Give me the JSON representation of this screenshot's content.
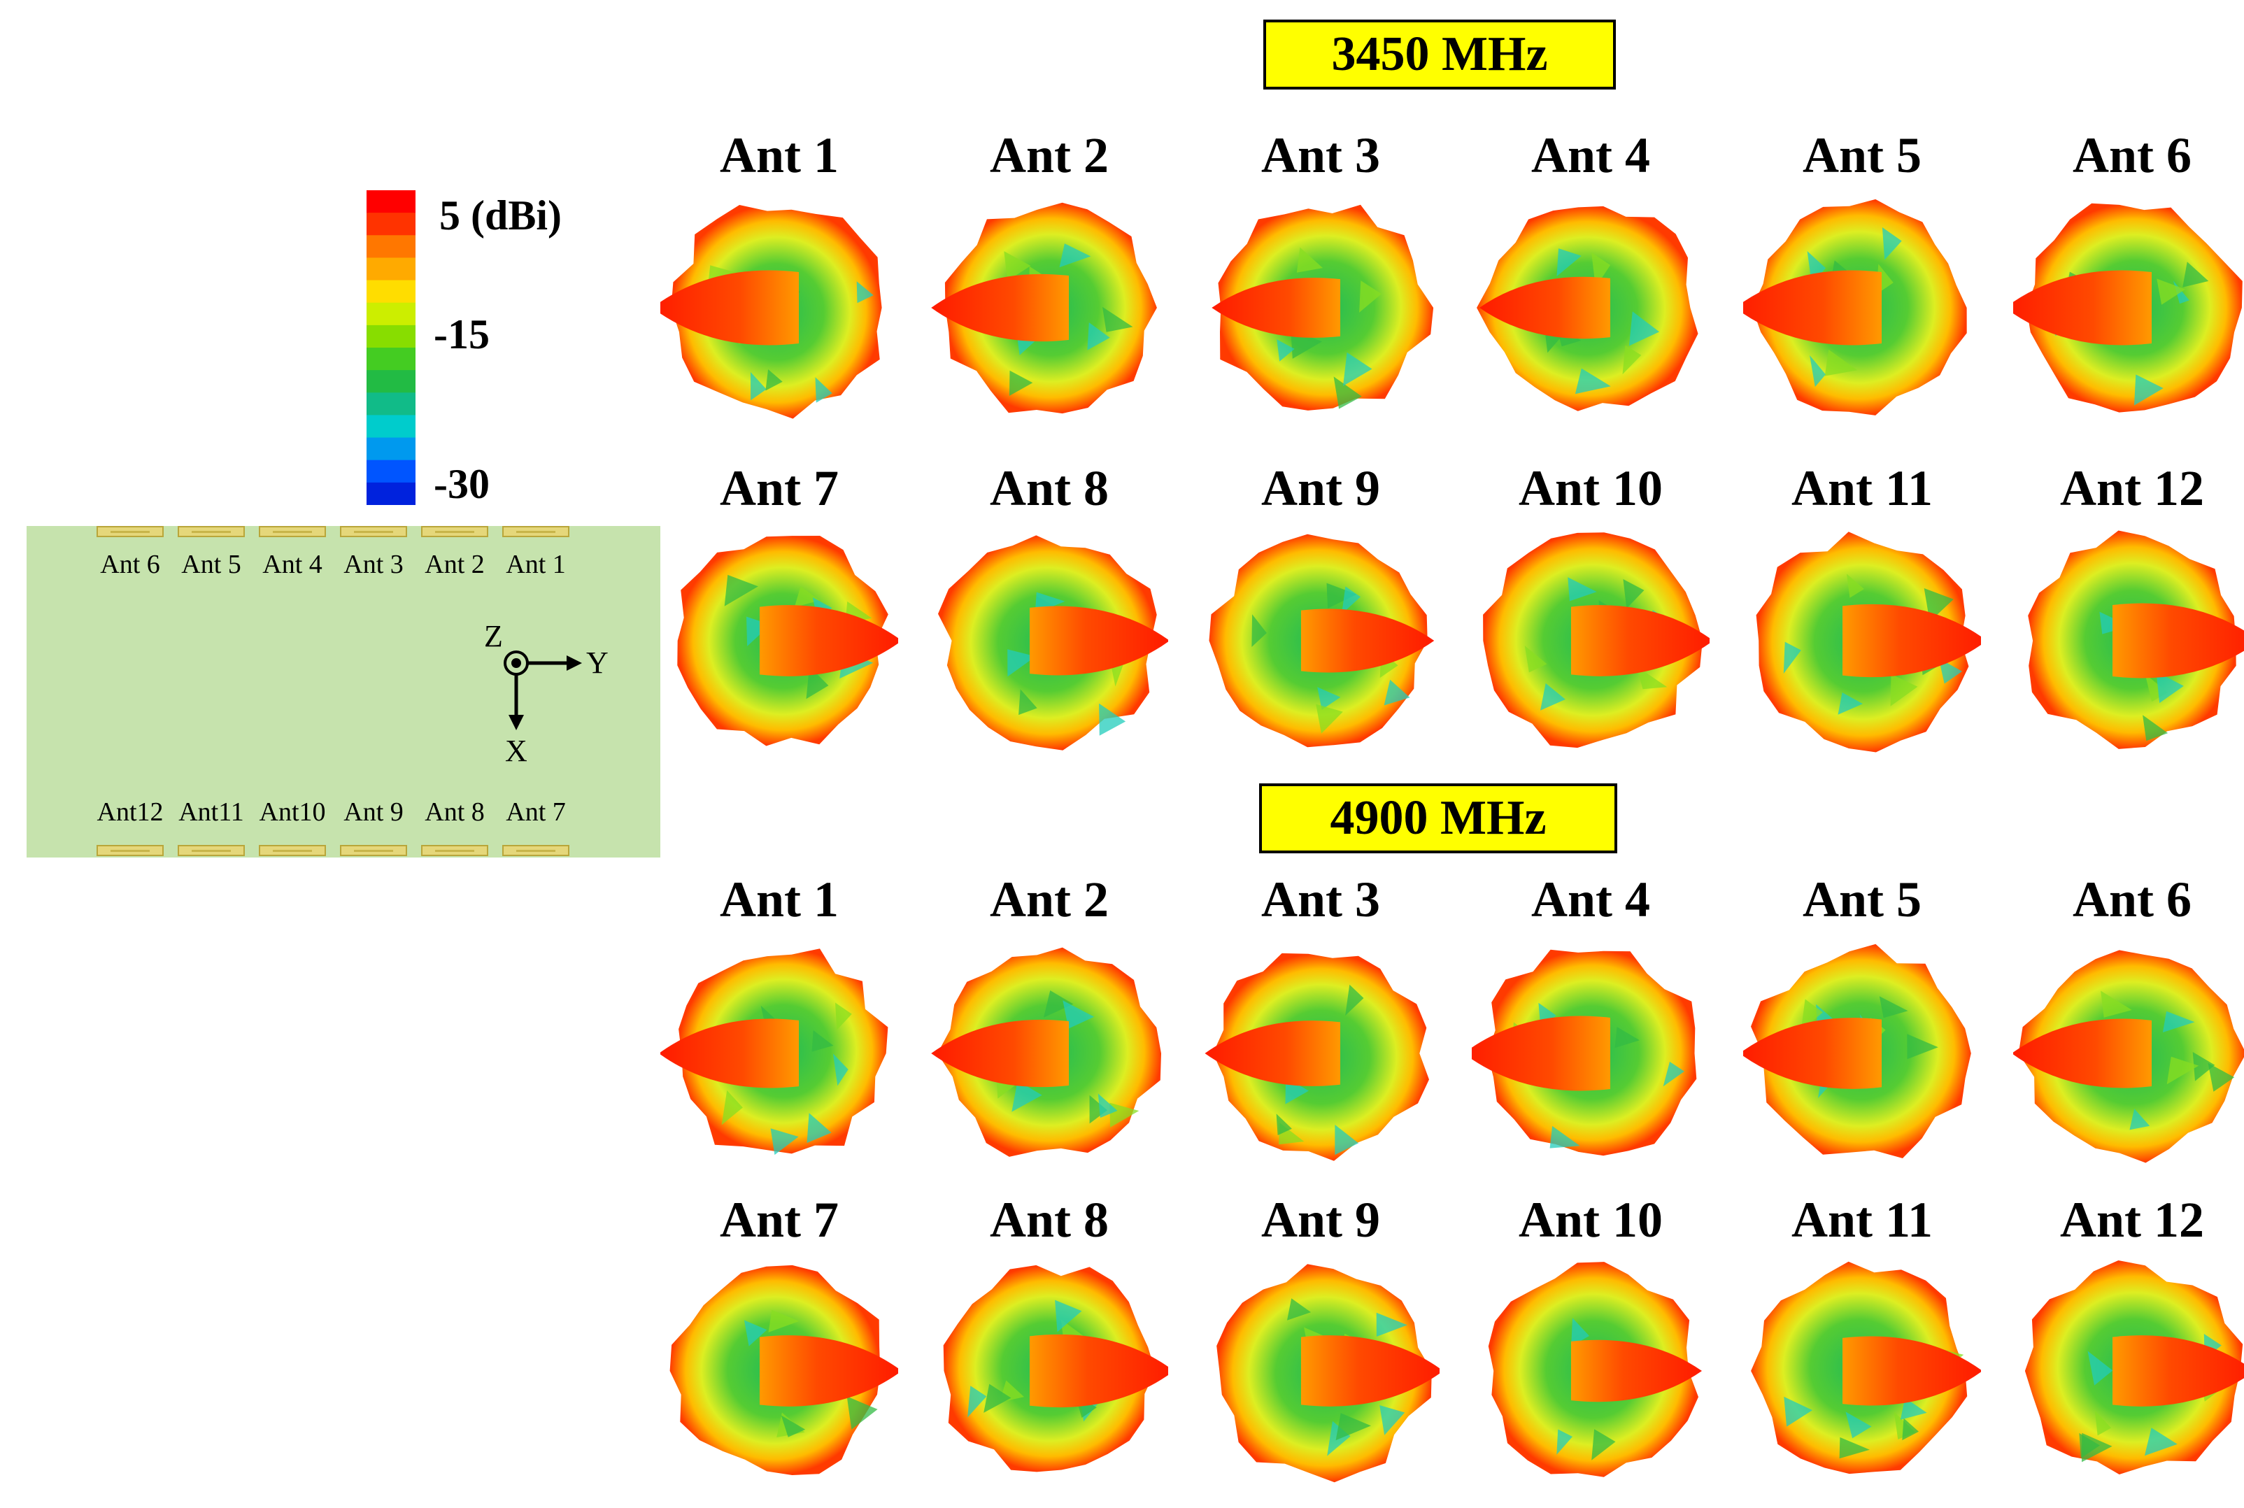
{
  "sections": [
    {
      "frequency": "3450 MHz",
      "antennas": [
        {
          "name": "Ant 1",
          "beam": "left",
          "strength": 0.95
        },
        {
          "name": "Ant 2",
          "beam": "left",
          "strength": 0.75
        },
        {
          "name": "Ant 3",
          "beam": "left",
          "strength": 0.55
        },
        {
          "name": "Ant 4",
          "beam": "left",
          "strength": 0.6
        },
        {
          "name": "Ant 5",
          "beam": "left",
          "strength": 0.95
        },
        {
          "name": "Ant 6",
          "beam": "left",
          "strength": 0.95
        },
        {
          "name": "Ant 7",
          "beam": "right",
          "strength": 0.85
        },
        {
          "name": "Ant 8",
          "beam": "right",
          "strength": 0.8
        },
        {
          "name": "Ant 9",
          "beam": "right",
          "strength": 0.65
        },
        {
          "name": "Ant 10",
          "beam": "right",
          "strength": 0.85
        },
        {
          "name": "Ant 11",
          "beam": "right",
          "strength": 0.9
        },
        {
          "name": "Ant 12",
          "beam": "right",
          "strength": 0.95
        }
      ]
    },
    {
      "frequency": "4900 MHz",
      "antennas": [
        {
          "name": "Ant 1",
          "beam": "left",
          "strength": 0.8
        },
        {
          "name": "Ant 2",
          "beam": "left",
          "strength": 0.75
        },
        {
          "name": "Ant 3",
          "beam": "left",
          "strength": 0.7
        },
        {
          "name": "Ant 4",
          "beam": "left",
          "strength": 0.95
        },
        {
          "name": "Ant 5",
          "beam": "left",
          "strength": 0.85
        },
        {
          "name": "Ant 6",
          "beam": "left",
          "strength": 0.8
        },
        {
          "name": "Ant 7",
          "beam": "right",
          "strength": 0.85
        },
        {
          "name": "Ant 8",
          "beam": "right",
          "strength": 0.9
        },
        {
          "name": "Ant 9",
          "beam": "right",
          "strength": 0.85
        },
        {
          "name": "Ant 10",
          "beam": "right",
          "strength": 0.6
        },
        {
          "name": "Ant 11",
          "beam": "right",
          "strength": 0.8
        },
        {
          "name": "Ant 12",
          "beam": "right",
          "strength": 0.85
        }
      ]
    }
  ],
  "colorbar": {
    "max_label": "5 (dBi)",
    "mid_label": "-15",
    "min_label": "-30",
    "colors": [
      "#ff0000",
      "#ff3300",
      "#ff7700",
      "#ffaa00",
      "#ffdd00",
      "#ccee00",
      "#88dd00",
      "#44cc22",
      "#22bb44",
      "#11bb88",
      "#00cccc",
      "#0099ee",
      "#0055ff",
      "#0022dd"
    ]
  },
  "board": {
    "top_labels": [
      "Ant 6",
      "Ant 5",
      "Ant 4",
      "Ant 3",
      "Ant 2",
      "Ant 1"
    ],
    "bottom_labels": [
      "Ant12",
      "Ant11",
      "Ant10",
      "Ant 9",
      "Ant 8",
      "Ant 7"
    ],
    "axis": {
      "z": "Z",
      "y": "Y",
      "x": "X"
    }
  }
}
